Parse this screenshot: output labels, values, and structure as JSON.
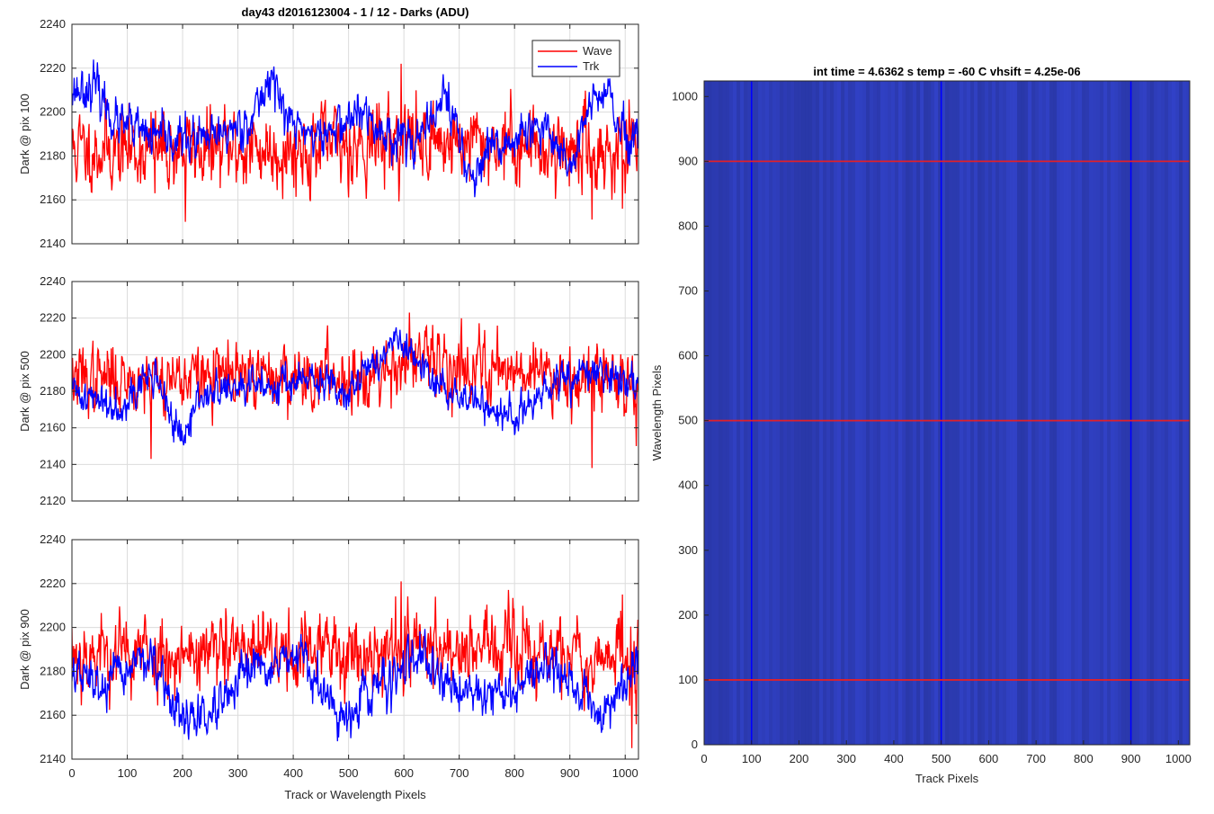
{
  "figure": {
    "title": "day43 d2016123004 - 1 / 12 - Darks (ADU)",
    "image_title": "int time = 4.6362 s    temp = -60 C    vhsift = 4.25e-06"
  },
  "colors": {
    "wave": "#ff0000",
    "trk": "#0000ff",
    "image_bg": "#2e3db8",
    "grid": "#dcdcdc",
    "axis": "#262626"
  },
  "chart_data": [
    {
      "type": "line",
      "id": "p100",
      "ylabel": "Dark @ pix 100",
      "xlabel": "",
      "title": "day43 d2016123004 - 1 / 12 - Darks (ADU)",
      "xlim": [
        0,
        1024
      ],
      "ylim": [
        2140,
        2240
      ],
      "xticks": [
        "0",
        "100",
        "200",
        "300",
        "400",
        "500",
        "600",
        "700",
        "800",
        "900",
        "1000"
      ],
      "yticks": [
        "2140",
        "2160",
        "2180",
        "2200",
        "2220",
        "2240"
      ],
      "grid": true,
      "legend": {
        "position": "top-right",
        "entries": [
          "Wave",
          "Trk"
        ]
      },
      "series": [
        {
          "name": "Wave",
          "n": 1024,
          "baseline": 2183,
          "noise": 9,
          "seed": 11,
          "features": [
            [
              150,
              2163
            ],
            [
              205,
              2150
            ],
            [
              595,
              2222
            ],
            [
              940,
              2151
            ],
            [
              995,
              2156
            ]
          ],
          "trend": [
            [
              0,
              2183
            ],
            [
              400,
              2183
            ],
            [
              600,
              2188
            ],
            [
              1024,
              2181
            ]
          ]
        },
        {
          "name": "Trk",
          "n": 1024,
          "baseline": 2190,
          "noise": 5,
          "seed": 23,
          "trend": [
            [
              0,
              2210
            ],
            [
              40,
              2212
            ],
            [
              80,
              2195
            ],
            [
              150,
              2188
            ],
            [
              250,
              2187
            ],
            [
              330,
              2198
            ],
            [
              360,
              2218
            ],
            [
              390,
              2196
            ],
            [
              450,
              2188
            ],
            [
              520,
              2200
            ],
            [
              560,
              2190
            ],
            [
              640,
              2188
            ],
            [
              670,
              2210
            ],
            [
              700,
              2190
            ],
            [
              720,
              2168
            ],
            [
              760,
              2182
            ],
            [
              820,
              2190
            ],
            [
              870,
              2190
            ],
            [
              900,
              2175
            ],
            [
              940,
              2205
            ],
            [
              970,
              2208
            ],
            [
              1000,
              2185
            ],
            [
              1024,
              2186
            ]
          ]
        }
      ]
    },
    {
      "type": "line",
      "id": "p500",
      "ylabel": "Dark @ pix 500",
      "xlabel": "",
      "xlim": [
        0,
        1024
      ],
      "ylim": [
        2120,
        2240
      ],
      "xticks": [
        "0",
        "100",
        "200",
        "300",
        "400",
        "500",
        "600",
        "700",
        "800",
        "900",
        "1000"
      ],
      "yticks": [
        "2120",
        "2140",
        "2160",
        "2180",
        "2200",
        "2220",
        "2240"
      ],
      "grid": true,
      "series": [
        {
          "name": "Wave",
          "n": 1024,
          "baseline": 2187,
          "noise": 9,
          "seed": 37,
          "features": [
            [
              143,
              2143
            ],
            [
              610,
              2223
            ],
            [
              940,
              2138
            ],
            [
              1020,
              2150
            ]
          ],
          "trend": [
            [
              0,
              2187
            ],
            [
              500,
              2188
            ],
            [
              600,
              2196
            ],
            [
              800,
              2193
            ],
            [
              1024,
              2185
            ]
          ]
        },
        {
          "name": "Trk",
          "n": 1024,
          "baseline": 2182,
          "noise": 5,
          "seed": 41,
          "trend": [
            [
              0,
              2180
            ],
            [
              80,
              2172
            ],
            [
              150,
              2190
            ],
            [
              200,
              2150
            ],
            [
              230,
              2178
            ],
            [
              400,
              2186
            ],
            [
              500,
              2182
            ],
            [
              590,
              2208
            ],
            [
              650,
              2185
            ],
            [
              800,
              2165
            ],
            [
              880,
              2185
            ],
            [
              940,
              2190
            ],
            [
              1024,
              2185
            ]
          ]
        }
      ]
    },
    {
      "type": "line",
      "id": "p900",
      "ylabel": "Dark @ pix 900",
      "xlabel": "Track or Wavelength Pixels",
      "xlim": [
        0,
        1024
      ],
      "ylim": [
        2140,
        2240
      ],
      "xticks": [
        "0",
        "100",
        "200",
        "300",
        "400",
        "500",
        "600",
        "700",
        "800",
        "900",
        "1000"
      ],
      "yticks": [
        "2140",
        "2160",
        "2180",
        "2200",
        "2220",
        "2240"
      ],
      "grid": true,
      "series": [
        {
          "name": "Wave",
          "n": 1024,
          "baseline": 2188,
          "noise": 9,
          "seed": 53,
          "features": [
            [
              595,
              2221
            ],
            [
              995,
              2215
            ],
            [
              1012,
              2145
            ]
          ],
          "trend": [
            [
              0,
              2188
            ],
            [
              500,
              2189
            ],
            [
              650,
              2192
            ],
            [
              1024,
              2185
            ]
          ]
        },
        {
          "name": "Trk",
          "n": 1024,
          "baseline": 2178,
          "noise": 5,
          "seed": 67,
          "trend": [
            [
              0,
              2180
            ],
            [
              60,
              2172
            ],
            [
              130,
              2188
            ],
            [
              200,
              2158
            ],
            [
              260,
              2160
            ],
            [
              330,
              2182
            ],
            [
              420,
              2185
            ],
            [
              480,
              2158
            ],
            [
              560,
              2175
            ],
            [
              620,
              2185
            ],
            [
              700,
              2172
            ],
            [
              800,
              2170
            ],
            [
              860,
              2185
            ],
            [
              940,
              2165
            ],
            [
              960,
              2160
            ],
            [
              1024,
              2185
            ]
          ]
        }
      ]
    },
    {
      "type": "heatmap",
      "id": "image",
      "title": "int time = 4.6362 s    temp = -60 C    vhsift = 4.25e-06",
      "xlabel": "Track Pixels",
      "ylabel": "Wavelength Pixels",
      "xlim": [
        0,
        1024
      ],
      "ylim": [
        0,
        1024
      ],
      "xticks": [
        "0",
        "100",
        "200",
        "300",
        "400",
        "500",
        "600",
        "700",
        "800",
        "900",
        "1000"
      ],
      "yticks": [
        "0",
        "100",
        "200",
        "300",
        "400",
        "500",
        "600",
        "700",
        "800",
        "900",
        "1000"
      ],
      "vlines": [
        100,
        500,
        900
      ],
      "hlines": [
        100,
        500,
        900
      ]
    }
  ]
}
